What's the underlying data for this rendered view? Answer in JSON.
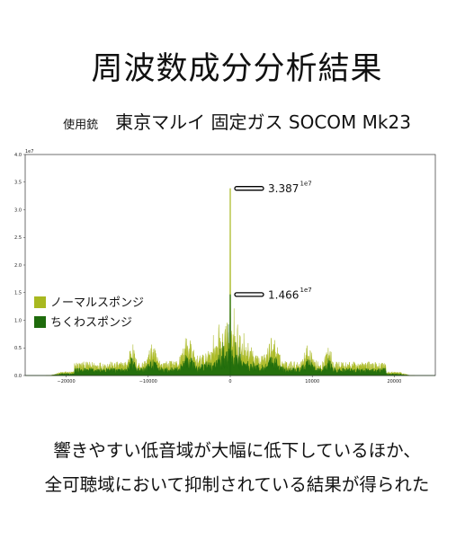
{
  "title": "周波数成分分析結果",
  "subtitle": {
    "label": "使用銃",
    "value": "東京マルイ 固定ガス SOCOM Mk23"
  },
  "caption": [
    "響きやすい低音域が大幅に低下しているほか、",
    "全可聴域において抑制されている結果が得られた"
  ],
  "chart_data": {
    "type": "line",
    "y_multiplier_label": "1e7",
    "xlim": [
      -25000,
      25000
    ],
    "ylim": [
      0,
      4.0
    ],
    "x_ticks": [
      -20000,
      -10000,
      0,
      10000,
      20000
    ],
    "y_ticks": [
      0.0,
      0.5,
      1.0,
      1.5,
      2.0,
      2.5,
      3.0,
      3.5,
      4.0
    ],
    "legend_position": "center-left",
    "series": [
      {
        "name": "ノーマルスポンジ",
        "color": "#a8b820",
        "peak_x": 0,
        "peak_y": 3.387
      },
      {
        "name": "ちくわスポンジ",
        "color": "#1e6b0c",
        "peak_x": 0,
        "peak_y": 1.466
      }
    ],
    "annotations": [
      {
        "text": "3.387",
        "exponent": "1e7",
        "y": 3.387
      },
      {
        "text": "1.466",
        "exponent": "1e7",
        "y": 1.466
      }
    ]
  }
}
